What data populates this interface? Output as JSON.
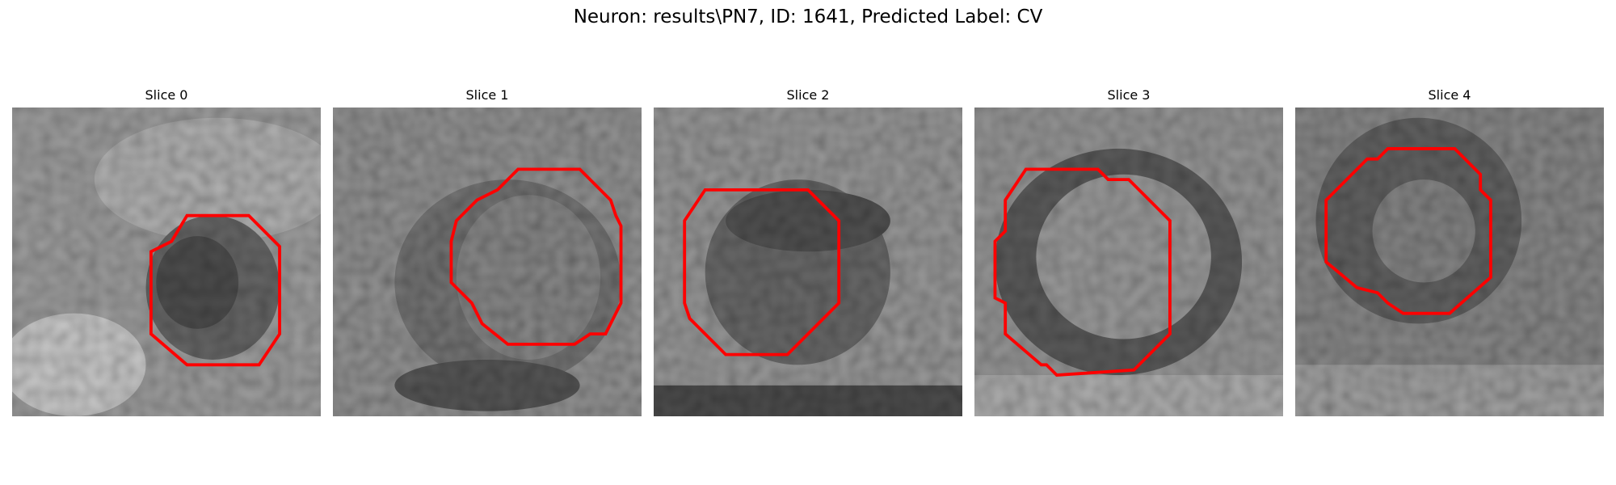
{
  "title": "Neuron: results\\PN7, ID: 1641, Predicted Label: CV",
  "panels": [
    {
      "title": "Slice 0"
    },
    {
      "title": "Slice 1"
    },
    {
      "title": "Slice 2"
    },
    {
      "title": "Slice 3"
    },
    {
      "title": "Slice 4"
    }
  ],
  "colors": {
    "contour": "#ff0000",
    "colormap": "grayscale"
  }
}
